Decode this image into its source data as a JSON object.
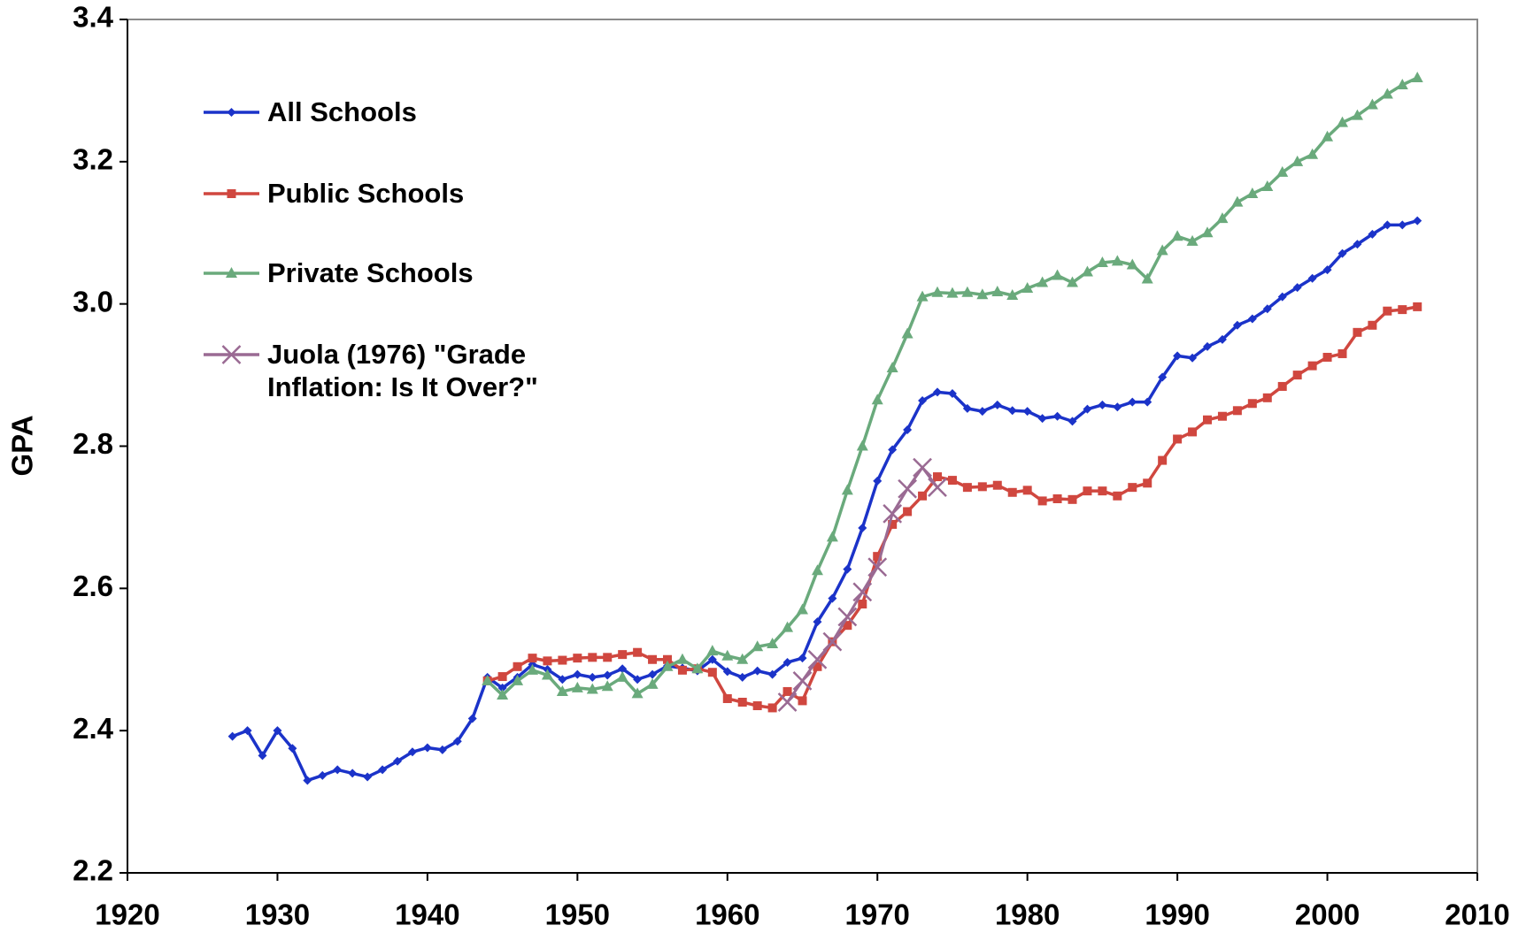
{
  "chart_data": {
    "type": "line",
    "ylabel": "GPA",
    "xlim": [
      1920,
      2010
    ],
    "xticks": [
      1920,
      1930,
      1940,
      1950,
      1960,
      1970,
      1980,
      1990,
      2000,
      2010
    ],
    "ylim": [
      2.2,
      3.4
    ],
    "yticks": [
      2.2,
      2.4,
      2.6,
      2.8,
      {
        "value": 3,
        "label": "3.0"
      },
      3.2,
      3.4
    ],
    "grid": false,
    "legend": "upper left",
    "series": [
      {
        "name": "All Schools",
        "color": "#1b33c9",
        "marker": "diamond",
        "x": [
          1927,
          1928,
          1929,
          1930,
          1931,
          1932,
          1933,
          1934,
          1935,
          1936,
          1937,
          1938,
          1939,
          1940,
          1941,
          1942,
          1943,
          1944,
          1945,
          1946,
          1947,
          1948,
          1949,
          1950,
          1951,
          1952,
          1953,
          1954,
          1955,
          1956,
          1957,
          1958,
          1959,
          1960,
          1961,
          1962,
          1963,
          1964,
          1965,
          1966,
          1967,
          1968,
          1969,
          1970,
          1971,
          1972,
          1973,
          1974,
          1975,
          1976,
          1977,
          1978,
          1979,
          1980,
          1981,
          1982,
          1983,
          1984,
          1985,
          1986,
          1987,
          1988,
          1989,
          1990,
          1991,
          1992,
          1993,
          1994,
          1995,
          1996,
          1997,
          1998,
          1999,
          2000,
          2001,
          2002,
          2003,
          2004,
          2005,
          2006
        ],
        "values": [
          2.392,
          2.4,
          2.365,
          2.4,
          2.375,
          2.33,
          2.337,
          2.345,
          2.34,
          2.335,
          2.345,
          2.357,
          2.37,
          2.376,
          2.373,
          2.385,
          2.417,
          2.475,
          2.46,
          2.475,
          2.493,
          2.486,
          2.472,
          2.479,
          2.475,
          2.478,
          2.487,
          2.472,
          2.479,
          2.491,
          2.488,
          2.484,
          2.5,
          2.483,
          2.475,
          2.484,
          2.479,
          2.496,
          2.502,
          2.553,
          2.586,
          2.627,
          2.685,
          2.751,
          2.795,
          2.823,
          2.864,
          2.876,
          2.874,
          2.853,
          2.849,
          2.858,
          2.85,
          2.849,
          2.839,
          2.842,
          2.835,
          2.852,
          2.858,
          2.855,
          2.862,
          2.862,
          2.897,
          2.927,
          2.924,
          2.94,
          2.95,
          2.97,
          2.979,
          2.993,
          3.01,
          3.023,
          3.036,
          3.048,
          3.071,
          3.084,
          3.098,
          3.111,
          3.111,
          3.117
        ]
      },
      {
        "name": "Public Schools",
        "color": "#d0473f",
        "marker": "square",
        "x": [
          1944,
          1945,
          1946,
          1947,
          1948,
          1949,
          1950,
          1951,
          1952,
          1953,
          1954,
          1955,
          1956,
          1957,
          1958,
          1959,
          1960,
          1961,
          1962,
          1963,
          1964,
          1965,
          1966,
          1967,
          1968,
          1969,
          1970,
          1971,
          1972,
          1973,
          1974,
          1975,
          1976,
          1977,
          1978,
          1979,
          1980,
          1981,
          1982,
          1983,
          1984,
          1985,
          1986,
          1987,
          1988,
          1989,
          1990,
          1991,
          1992,
          1993,
          1994,
          1995,
          1996,
          1997,
          1998,
          1999,
          2000,
          2001,
          2002,
          2003,
          2004,
          2005,
          2006
        ],
        "values": [
          2.47,
          2.476,
          2.49,
          2.502,
          2.498,
          2.499,
          2.502,
          2.503,
          2.503,
          2.507,
          2.51,
          2.5,
          2.5,
          2.485,
          2.487,
          2.482,
          2.445,
          2.44,
          2.435,
          2.432,
          2.455,
          2.442,
          2.49,
          2.525,
          2.548,
          2.578,
          2.645,
          2.69,
          2.708,
          2.73,
          2.757,
          2.752,
          2.742,
          2.743,
          2.745,
          2.735,
          2.738,
          2.723,
          2.726,
          2.725,
          2.737,
          2.737,
          2.73,
          2.742,
          2.748,
          2.78,
          2.81,
          2.82,
          2.837,
          2.842,
          2.85,
          2.86,
          2.868,
          2.884,
          2.9,
          2.913,
          2.925,
          2.93,
          2.96,
          2.97,
          2.99,
          2.992,
          2.996
        ]
      },
      {
        "name": "Private Schools",
        "color": "#6aaa7c",
        "marker": "triangle",
        "x": [
          1944,
          1945,
          1946,
          1947,
          1948,
          1949,
          1950,
          1951,
          1952,
          1953,
          1954,
          1955,
          1956,
          1957,
          1958,
          1959,
          1960,
          1961,
          1962,
          1963,
          1964,
          1965,
          1966,
          1967,
          1968,
          1969,
          1970,
          1971,
          1972,
          1973,
          1974,
          1975,
          1976,
          1977,
          1978,
          1979,
          1980,
          1981,
          1982,
          1983,
          1984,
          1985,
          1986,
          1987,
          1988,
          1989,
          1990,
          1991,
          1992,
          1993,
          1994,
          1995,
          1996,
          1997,
          1998,
          1999,
          2000,
          2001,
          2002,
          2003,
          2004,
          2005,
          2006
        ],
        "values": [
          2.47,
          2.45,
          2.47,
          2.485,
          2.478,
          2.455,
          2.46,
          2.458,
          2.462,
          2.475,
          2.452,
          2.465,
          2.49,
          2.5,
          2.487,
          2.512,
          2.505,
          2.5,
          2.518,
          2.522,
          2.545,
          2.57,
          2.625,
          2.672,
          2.738,
          2.8,
          2.865,
          2.91,
          2.958,
          3.01,
          3.016,
          3.015,
          3.016,
          3.013,
          3.017,
          3.012,
          3.022,
          3.03,
          3.04,
          3.03,
          3.045,
          3.058,
          3.06,
          3.055,
          3.035,
          3.075,
          3.095,
          3.088,
          3.1,
          3.12,
          3.143,
          3.155,
          3.165,
          3.185,
          3.2,
          3.21,
          3.235,
          3.255,
          3.265,
          3.28,
          3.295,
          3.308,
          3.318
        ]
      },
      {
        "name": "Juola (1976) \"Grade Inflation: Is It Over?\"",
        "color": "#9a6a93",
        "marker": "x",
        "x": [
          1964,
          1965,
          1966,
          1967,
          1968,
          1969,
          1970,
          1971,
          1972,
          1973,
          1974
        ],
        "values": [
          2.44,
          2.47,
          2.5,
          2.525,
          2.56,
          2.595,
          2.63,
          2.705,
          2.74,
          2.77,
          2.742
        ]
      }
    ]
  }
}
